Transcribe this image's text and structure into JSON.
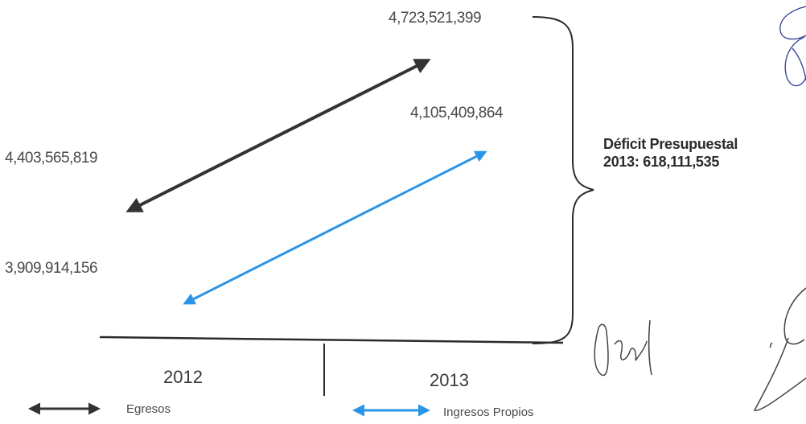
{
  "chart_data": {
    "type": "line",
    "categories": [
      "2012",
      "2013"
    ],
    "series": [
      {
        "name": "Egresos",
        "values": [
          4403565819,
          4723521399
        ],
        "labels": [
          "4,403,565,819",
          "4,723,521,399"
        ],
        "color": "#333333"
      },
      {
        "name": "Ingresos Propios",
        "values": [
          3909914156,
          4105409864
        ],
        "labels": [
          "3,909,914,156",
          "4,105,409,864"
        ],
        "color": "#2a95e6"
      }
    ],
    "annotation": {
      "title": "Déficit Presupuestal",
      "text": "2013: 618,111,535"
    },
    "legend": "bottom",
    "grid": false
  },
  "signatures": [
    "signature",
    "signature",
    "signature"
  ]
}
